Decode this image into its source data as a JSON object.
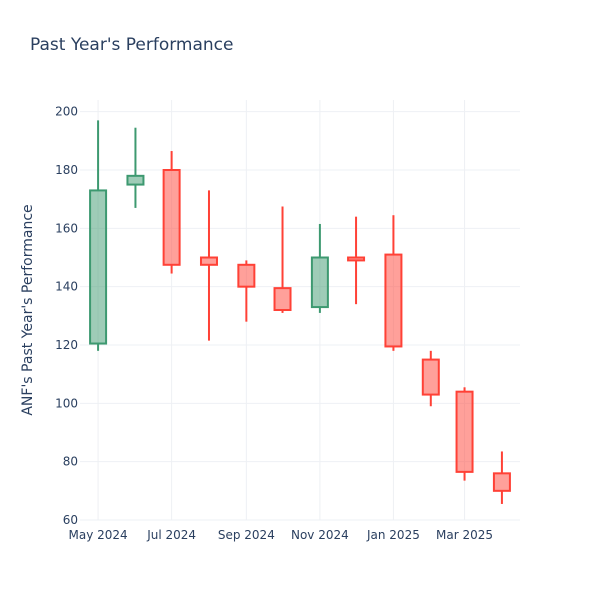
{
  "chart_data": {
    "type": "candlestick",
    "title": "Past Year's Performance",
    "xlabel": "",
    "ylabel": "ANF's Past Year's Performance",
    "ylim": [
      60,
      204
    ],
    "yticks": [
      60,
      80,
      100,
      120,
      140,
      160,
      180,
      200
    ],
    "x_range": [
      "2024-04-16",
      "2025-04-16"
    ],
    "xticks": [
      {
        "date": "2024-05-01",
        "label": "May 2024"
      },
      {
        "date": "2024-07-01",
        "label": "Jul 2024"
      },
      {
        "date": "2024-09-01",
        "label": "Sep 2024"
      },
      {
        "date": "2024-11-01",
        "label": "Nov 2024"
      },
      {
        "date": "2025-01-01",
        "label": "Jan 2025"
      },
      {
        "date": "2025-03-01",
        "label": "Mar 2025"
      }
    ],
    "grid": true,
    "colors": {
      "increasing": "#3d9970",
      "decreasing": "#ff4136"
    },
    "candles": [
      {
        "date": "2024-05-01",
        "open": 120.5,
        "high": 197.0,
        "low": 118.0,
        "close": 173.0
      },
      {
        "date": "2024-06-01",
        "open": 175.0,
        "high": 194.5,
        "low": 167.0,
        "close": 178.0
      },
      {
        "date": "2024-07-01",
        "open": 180.0,
        "high": 186.5,
        "low": 144.5,
        "close": 147.5
      },
      {
        "date": "2024-08-01",
        "open": 150.0,
        "high": 173.0,
        "low": 121.5,
        "close": 147.5
      },
      {
        "date": "2024-09-01",
        "open": 147.5,
        "high": 149.0,
        "low": 128.0,
        "close": 140.0
      },
      {
        "date": "2024-10-01",
        "open": 139.5,
        "high": 167.5,
        "low": 131.0,
        "close": 132.0
      },
      {
        "date": "2024-11-01",
        "open": 133.0,
        "high": 161.5,
        "low": 131.0,
        "close": 150.0
      },
      {
        "date": "2024-12-01",
        "open": 150.0,
        "high": 164.0,
        "low": 134.0,
        "close": 149.0
      },
      {
        "date": "2025-01-01",
        "open": 151.0,
        "high": 164.5,
        "low": 118.0,
        "close": 119.5
      },
      {
        "date": "2025-02-01",
        "open": 115.0,
        "high": 118.0,
        "low": 99.0,
        "close": 103.0
      },
      {
        "date": "2025-03-01",
        "open": 104.0,
        "high": 105.5,
        "low": 73.5,
        "close": 76.5
      },
      {
        "date": "2025-04-01",
        "open": 76.0,
        "high": 83.5,
        "low": 65.5,
        "close": 70.0
      }
    ]
  }
}
